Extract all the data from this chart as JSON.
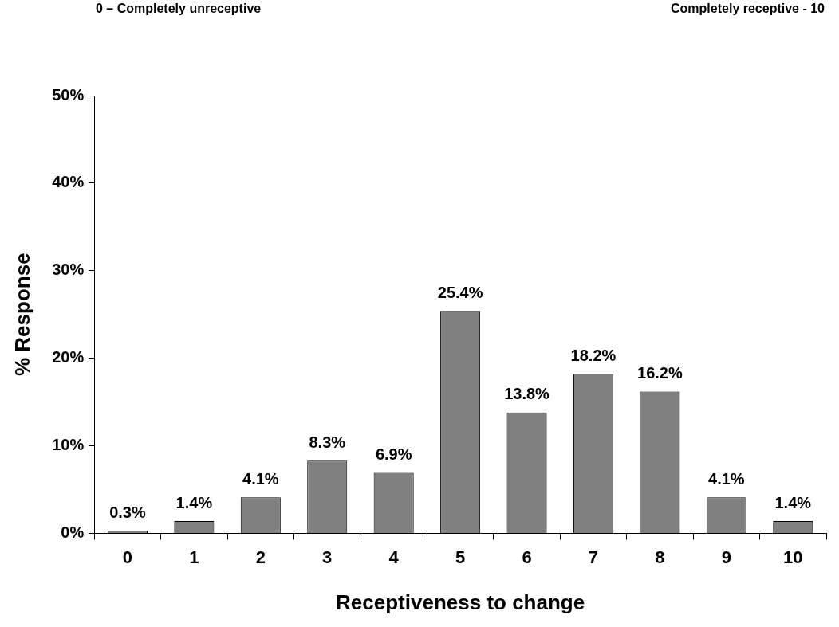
{
  "chart_data": {
    "type": "bar",
    "xlabel": "Receptiveness to change",
    "ylabel": "% Response",
    "annotations": [
      "0 – Completely unreceptive",
      "Completely receptive - 10"
    ],
    "categories": [
      "0",
      "1",
      "2",
      "3",
      "4",
      "5",
      "6",
      "7",
      "8",
      "9",
      "10"
    ],
    "values": [
      0.3,
      1.4,
      4.1,
      8.3,
      6.9,
      25.4,
      13.8,
      18.2,
      16.2,
      4.1,
      1.4
    ],
    "value_labels": [
      "0.3%",
      "1.4%",
      "4.1%",
      "8.3%",
      "6.9%",
      "25.4%",
      "13.8%",
      "18.2%",
      "16.2%",
      "4.1%",
      "1.4%"
    ],
    "color": "#808080",
    "ylim": [
      0,
      50
    ],
    "yticks": [
      {
        "value": 0,
        "label": "0%"
      },
      {
        "value": 10,
        "label": "10%"
      },
      {
        "value": 20,
        "label": "20%"
      },
      {
        "value": 30,
        "label": "30%"
      },
      {
        "value": 40,
        "label": "40%"
      },
      {
        "value": 50,
        "label": "50%"
      }
    ],
    "grid": false
  }
}
